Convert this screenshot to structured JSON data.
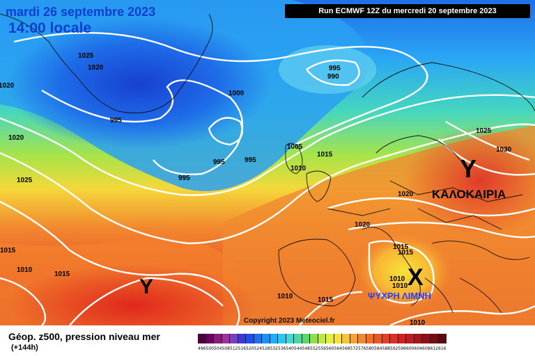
{
  "header": {
    "title": "mardi 26 septembre 2023",
    "time": "14:00 locale",
    "run": "Run ECMWF 12Z du mercredi 20 septembre 2023"
  },
  "map": {
    "isobar_labels": [
      "1025",
      "1020",
      "1020",
      "995",
      "995",
      "1000",
      "990",
      "995",
      "995",
      "995",
      "1020",
      "1025",
      "1005",
      "1015",
      "1010",
      "1025",
      "1030",
      "1020",
      "1020",
      "1015",
      "1010",
      "1015",
      "1015",
      "1010",
      "1015",
      "1010",
      "1010",
      "1010",
      "1015",
      "1015",
      "1015",
      "1020",
      "1010"
    ],
    "overlays": {
      "high_label": "ΚΑΛΟΚΑΙΡΙΑ",
      "low_label": "ΨΥΧΡΗ ΛΙΜΝΗ",
      "high_symbol": "Y",
      "low_symbol": "X",
      "atlantic_symbol": "Y"
    },
    "copyright": "Copyright 2023 Meteociel.fr"
  },
  "footer": {
    "title": "Géop. z500, pression niveau mer",
    "subtitle": "(+144h)",
    "scale_values": [
      "496",
      "500",
      "504",
      "508",
      "512",
      "516",
      "520",
      "524",
      "528",
      "532",
      "536",
      "540",
      "544",
      "548",
      "552",
      "556",
      "560",
      "564",
      "568",
      "572",
      "576",
      "580",
      "584",
      "588",
      "592",
      "596",
      "600",
      "604",
      "608",
      "612",
      "616"
    ],
    "scale_colors": [
      "#4b0040",
      "#6b005e",
      "#8a1a7e",
      "#a030a0",
      "#7a3fc0",
      "#3a3ad8",
      "#1f4fe8",
      "#1f6ff0",
      "#1e8ff4",
      "#20acf6",
      "#2cc6f2",
      "#44d6d6",
      "#4cd8a0",
      "#5cd86a",
      "#8ee04a",
      "#bce840",
      "#e6ee3c",
      "#f6e23a",
      "#f8c436",
      "#f6a232",
      "#f2882e",
      "#ee6e2a",
      "#ea5628",
      "#e44226",
      "#dc3024",
      "#d02222",
      "#c01c20",
      "#a8161c",
      "#901018",
      "#780c14",
      "#600810"
    ]
  }
}
